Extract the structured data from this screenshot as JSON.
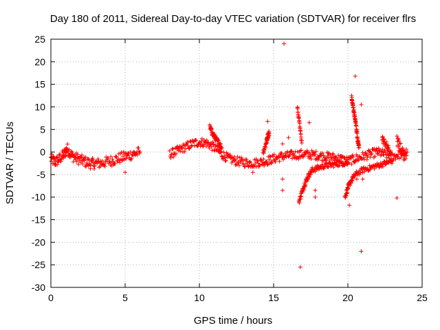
{
  "chart_data": {
    "type": "scatter",
    "title": "Day 180 of 2011, Sidereal Day-to-day VTEC variation (SDTVAR) for receiver flrs",
    "xlabel": "GPS time / hours",
    "ylabel": "SDTVAR / TECUs",
    "xlim": [
      0,
      25
    ],
    "ylim": [
      -30,
      25
    ],
    "xticks": [
      0,
      5,
      10,
      15,
      20,
      25
    ],
    "yticks": [
      -30,
      -25,
      -20,
      -15,
      -10,
      -5,
      0,
      5,
      10,
      15,
      20,
      25
    ],
    "grid": true,
    "marker": "+",
    "color": "#ff0000",
    "segments": [
      {
        "x": [
          0.0,
          0.3,
          0.6,
          0.9,
          1.1,
          1.4,
          1.8,
          2.2,
          2.6,
          3.0,
          3.5,
          4.0,
          4.5,
          5.0,
          5.5,
          6.0
        ],
        "y": [
          -1.5,
          -2.2,
          -1.5,
          -0.5,
          0.8,
          -0.8,
          -1.5,
          -2.0,
          -2.5,
          -2.6,
          -2.4,
          -2.0,
          -1.5,
          -1.0,
          -0.5,
          0.0
        ],
        "spread": 1.2
      },
      {
        "x": [
          8.0,
          8.5,
          9.0,
          9.5,
          10.0,
          10.5,
          11.0,
          11.5,
          12.0,
          12.5,
          13.0,
          13.5,
          14.0,
          14.5,
          15.0,
          15.5,
          16.0,
          16.5,
          17.0,
          17.5,
          18.0,
          18.5,
          19.0,
          19.5,
          20.0,
          20.5,
          21.0,
          21.5,
          22.0,
          22.5,
          23.0,
          23.5,
          24.0
        ],
        "y": [
          -0.5,
          0.2,
          1.0,
          1.8,
          2.2,
          2.0,
          1.0,
          -0.5,
          -1.5,
          -2.0,
          -2.3,
          -2.5,
          -2.3,
          -2.0,
          -1.5,
          -1.0,
          -0.8,
          -0.6,
          -0.5,
          -0.6,
          -0.8,
          -1.0,
          -1.2,
          -1.5,
          -2.0,
          -1.5,
          -1.0,
          -0.5,
          0.0,
          -0.5,
          -1.0,
          -0.5,
          0.0
        ],
        "spread": 1.0
      },
      {
        "x": [
          10.7,
          10.9,
          11.1,
          11.3,
          11.5
        ],
        "y": [
          5.5,
          4.0,
          3.0,
          2.0,
          1.0
        ],
        "spread": 0.6
      },
      {
        "x": [
          14.3,
          14.5,
          14.6,
          14.7
        ],
        "y": [
          0.0,
          2.0,
          3.5,
          4.2
        ],
        "spread": 0.6
      },
      {
        "x": [
          16.7,
          16.9,
          17.1,
          17.3,
          17.6,
          18.0,
          18.5,
          19.0,
          19.5,
          20.0
        ],
        "y": [
          -11.0,
          -9.0,
          -7.0,
          -5.5,
          -4.0,
          -3.5,
          -3.0,
          -2.8,
          -2.5,
          -2.5
        ],
        "spread": 0.6
      },
      {
        "x": [
          19.8,
          20.0,
          20.2,
          20.5,
          21.0,
          21.5,
          22.0,
          22.5,
          23.0
        ],
        "y": [
          -10.0,
          -8.0,
          -6.5,
          -5.0,
          -4.0,
          -3.5,
          -3.0,
          -2.5,
          -2.0
        ],
        "spread": 0.6
      },
      {
        "x": [
          20.25,
          20.35,
          20.45,
          20.55,
          20.65,
          20.75
        ],
        "y": [
          12.0,
          10.0,
          8.0,
          6.0,
          3.0,
          1.0
        ],
        "spread": 0.6
      },
      {
        "x": [
          16.6,
          16.75,
          16.9
        ],
        "y": [
          10.0,
          6.0,
          2.0
        ],
        "spread": 0.4
      },
      {
        "x": [
          22.3,
          22.6,
          22.9
        ],
        "y": [
          3.0,
          1.5,
          -0.5
        ],
        "spread": 0.8
      },
      {
        "x": [
          23.3,
          23.6,
          23.9
        ],
        "y": [
          2.5,
          0.5,
          -1.5
        ],
        "spread": 1.2
      }
    ],
    "outliers": [
      {
        "x": 15.7,
        "y": 24.0
      },
      {
        "x": 20.5,
        "y": 16.8
      },
      {
        "x": 20.9,
        "y": 10.5
      },
      {
        "x": 14.6,
        "y": 6.8
      },
      {
        "x": 17.4,
        "y": 6.5
      },
      {
        "x": 16.0,
        "y": 3.2
      },
      {
        "x": 15.6,
        "y": 1.8
      },
      {
        "x": 13.6,
        "y": -4.5
      },
      {
        "x": 5.0,
        "y": -4.5
      },
      {
        "x": 15.6,
        "y": -6.0
      },
      {
        "x": 15.6,
        "y": -8.5
      },
      {
        "x": 17.8,
        "y": -8.5
      },
      {
        "x": 17.8,
        "y": -10.0
      },
      {
        "x": 20.1,
        "y": -11.8
      },
      {
        "x": 23.3,
        "y": -10.2
      },
      {
        "x": 20.9,
        "y": -22.0
      },
      {
        "x": 16.8,
        "y": -25.5
      },
      {
        "x": 20.6,
        "y": -6.0
      },
      {
        "x": 21.0,
        "y": -6.0
      }
    ]
  }
}
